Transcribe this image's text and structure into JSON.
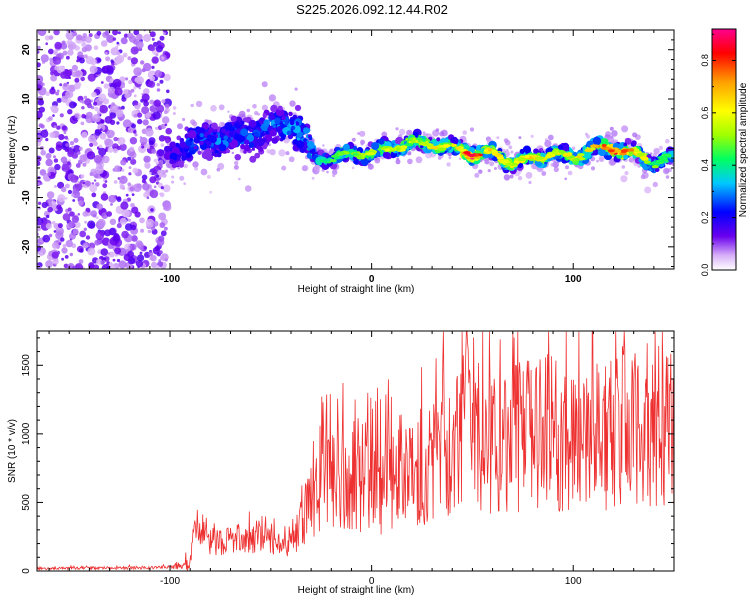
{
  "title": "S225.2026.092.12.44.R02",
  "chart_data": [
    {
      "type": "heatmap",
      "name": "spectrogram",
      "xlabel": "Height of straight line (km)",
      "ylabel": "Frequency (Hz)",
      "xlim": [
        -166,
        150
      ],
      "ylim": [
        -24.5,
        24
      ],
      "x_ticks": [
        -100,
        0,
        100
      ],
      "x_tick_labels": [
        "-100",
        "0",
        "100"
      ],
      "y_ticks": [
        -20,
        -10,
        0,
        10,
        20
      ],
      "y_tick_labels": [
        "-20",
        "-10",
        "0",
        "10",
        "20"
      ],
      "colorbar": {
        "label": "Normalized spectral amplitude",
        "range": [
          0,
          0.92
        ],
        "ticks": [
          0.0,
          0.2,
          0.4,
          0.6,
          0.8
        ],
        "tick_labels": [
          "0.0",
          "0.2",
          "0.4",
          "0.6",
          "0.8"
        ],
        "colors": [
          "#ffffff",
          "#d8b0f8",
          "#6a00ee",
          "#0000ff",
          "#00c8ff",
          "#00ff60",
          "#a0ff00",
          "#ffff00",
          "#ffa000",
          "#ff0000",
          "#ff0090"
        ]
      },
      "ridge": {
        "x": [
          -100,
          -90,
          -80,
          -70,
          -60,
          -50,
          -40,
          -33,
          -28,
          -20,
          -10,
          0,
          10,
          20,
          30,
          40,
          50,
          60,
          70,
          80,
          90,
          100,
          110,
          120,
          130,
          140,
          148
        ],
        "y": [
          -1,
          1,
          2,
          2,
          3,
          4,
          5,
          2,
          -2,
          -2,
          -1,
          -1,
          0,
          1,
          1,
          0,
          -1,
          -1,
          -3,
          -2,
          -1,
          -2,
          0,
          0,
          -1,
          -3,
          -2
        ],
        "amplitude": [
          0.2,
          0.3,
          0.3,
          0.3,
          0.3,
          0.3,
          0.35,
          0.4,
          0.35,
          0.45,
          0.5,
          0.55,
          0.6,
          0.55,
          0.6,
          0.55,
          0.85,
          0.6,
          0.6,
          0.65,
          0.6,
          0.6,
          0.65,
          0.8,
          0.7,
          0.5,
          0.45
        ]
      },
      "noise_region_x": [
        -166,
        -105
      ]
    },
    {
      "type": "line",
      "name": "snr",
      "xlabel": "Height of straight line (km)",
      "ylabel": "SNR (10 * v/v)",
      "xlim": [
        -166,
        150
      ],
      "ylim": [
        0,
        1750
      ],
      "x_ticks": [
        -100,
        0,
        100
      ],
      "x_tick_labels": [
        "-100",
        "0",
        "100"
      ],
      "y_ticks": [
        0,
        500,
        1000,
        1500
      ],
      "y_tick_labels": [
        "0",
        "500",
        "1000",
        "1500"
      ],
      "series": [
        {
          "name": "SNR",
          "color": "#ee3030",
          "x": [
            -166,
            -150,
            -130,
            -110,
            -100,
            -90,
            -87,
            -84,
            -80,
            -70,
            -60,
            -50,
            -42,
            -38,
            -33,
            -30,
            -25,
            -20,
            -15,
            -10,
            -5,
            0,
            5,
            10,
            15,
            20,
            25,
            30,
            35,
            40,
            45,
            47,
            50,
            55,
            60,
            65,
            70,
            75,
            80,
            85,
            90,
            95,
            100,
            105,
            110,
            115,
            120,
            125,
            130,
            135,
            140,
            145,
            150
          ],
          "y": [
            18,
            20,
            22,
            25,
            28,
            60,
            330,
            300,
            230,
            230,
            240,
            220,
            180,
            240,
            410,
            460,
            640,
            650,
            690,
            720,
            700,
            650,
            640,
            720,
            760,
            780,
            760,
            820,
            880,
            900,
            950,
            1750,
            1000,
            980,
            920,
            950,
            1000,
            980,
            990,
            1050,
            1000,
            980,
            950,
            1000,
            1050,
            980,
            1000,
            1100,
            1000,
            1050,
            1080,
            1000,
            1050
          ],
          "spread": [
            8,
            10,
            10,
            12,
            12,
            60,
            120,
            130,
            120,
            110,
            110,
            100,
            80,
            120,
            250,
            300,
            350,
            400,
            400,
            420,
            420,
            400,
            380,
            420,
            420,
            450,
            450,
            480,
            500,
            500,
            520,
            200,
            550,
            550,
            520,
            540,
            560,
            560,
            560,
            580,
            560,
            560,
            550,
            560,
            580,
            560,
            560,
            600,
            580,
            600,
            620,
            580,
            600
          ]
        }
      ]
    }
  ]
}
